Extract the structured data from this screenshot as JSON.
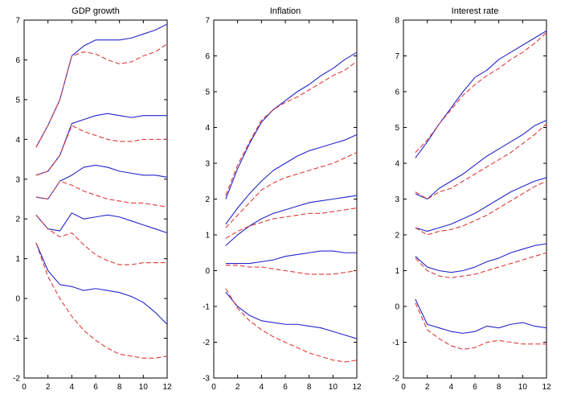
{
  "figure": {
    "background": "#ffffff"
  },
  "styles": {
    "axis": "#000000",
    "blue": "#2424cc",
    "red": "#e03a3a"
  },
  "chart_data": [
    {
      "type": "line",
      "title": "GDP growth",
      "xlabel": "",
      "ylabel": "",
      "x": [
        1,
        2,
        3,
        4,
        5,
        6,
        7,
        8,
        9,
        10,
        11,
        12
      ],
      "xlim": [
        0,
        12
      ],
      "ylim": [
        -2,
        7
      ],
      "xticks": [
        0,
        2,
        4,
        6,
        8,
        10,
        12
      ],
      "yticks": [
        -2,
        -1,
        0,
        1,
        2,
        3,
        4,
        5,
        6,
        7
      ],
      "grid": false,
      "legend": "none",
      "series": [
        {
          "name": "band1-blue-solid",
          "color": "#2424cc",
          "dash": false,
          "values": [
            3.8,
            4.35,
            5.0,
            6.1,
            6.35,
            6.5,
            6.5,
            6.5,
            6.55,
            6.65,
            6.75,
            6.9
          ]
        },
        {
          "name": "band1-red-dashed",
          "color": "#e03a3a",
          "dash": true,
          "values": [
            3.8,
            4.35,
            5.0,
            6.1,
            6.2,
            6.15,
            6.0,
            5.9,
            5.95,
            6.1,
            6.2,
            6.4
          ]
        },
        {
          "name": "band2-blue-solid",
          "color": "#2424cc",
          "dash": false,
          "values": [
            3.1,
            3.2,
            3.6,
            4.4,
            4.5,
            4.6,
            4.65,
            4.6,
            4.55,
            4.6,
            4.6,
            4.6
          ]
        },
        {
          "name": "band2-red-dashed",
          "color": "#e03a3a",
          "dash": true,
          "values": [
            3.1,
            3.2,
            3.6,
            4.35,
            4.2,
            4.1,
            4.0,
            3.95,
            3.95,
            4.0,
            4.0,
            4.0
          ]
        },
        {
          "name": "band3-blue-solid",
          "color": "#2424cc",
          "dash": false,
          "values": [
            2.55,
            2.5,
            2.95,
            3.1,
            3.3,
            3.35,
            3.3,
            3.2,
            3.15,
            3.1,
            3.1,
            3.05
          ]
        },
        {
          "name": "band3-red-dashed",
          "color": "#e03a3a",
          "dash": true,
          "values": [
            2.55,
            2.5,
            2.95,
            2.85,
            2.7,
            2.6,
            2.5,
            2.45,
            2.4,
            2.4,
            2.35,
            2.3
          ]
        },
        {
          "name": "band4-blue-solid",
          "color": "#2424cc",
          "dash": false,
          "values": [
            2.1,
            1.75,
            1.7,
            2.15,
            2.0,
            2.05,
            2.1,
            2.05,
            1.95,
            1.85,
            1.75,
            1.65
          ]
        },
        {
          "name": "band4-red-dashed",
          "color": "#e03a3a",
          "dash": true,
          "values": [
            2.1,
            1.75,
            1.55,
            1.65,
            1.35,
            1.1,
            0.95,
            0.85,
            0.85,
            0.9,
            0.9,
            0.9
          ]
        },
        {
          "name": "band5-blue-solid",
          "color": "#2424cc",
          "dash": false,
          "values": [
            1.4,
            0.7,
            0.35,
            0.3,
            0.2,
            0.25,
            0.2,
            0.15,
            0.05,
            -0.1,
            -0.35,
            -0.65
          ]
        },
        {
          "name": "band5-red-dashed",
          "color": "#e03a3a",
          "dash": true,
          "values": [
            1.4,
            0.55,
            0.0,
            -0.45,
            -0.8,
            -1.05,
            -1.25,
            -1.4,
            -1.45,
            -1.5,
            -1.5,
            -1.45
          ]
        }
      ]
    },
    {
      "type": "line",
      "title": "Inflation",
      "xlabel": "",
      "ylabel": "",
      "x": [
        1,
        2,
        3,
        4,
        5,
        6,
        7,
        8,
        9,
        10,
        11,
        12
      ],
      "xlim": [
        0,
        12
      ],
      "ylim": [
        -3,
        7
      ],
      "xticks": [
        0,
        2,
        4,
        6,
        8,
        10,
        12
      ],
      "yticks": [
        -3,
        -2,
        -1,
        0,
        1,
        2,
        3,
        4,
        5,
        6,
        7
      ],
      "grid": false,
      "legend": "none",
      "series": [
        {
          "name": "band1-blue-solid",
          "color": "#2424cc",
          "dash": false,
          "values": [
            2.0,
            2.85,
            3.55,
            4.15,
            4.5,
            4.75,
            5.0,
            5.2,
            5.45,
            5.65,
            5.9,
            6.1
          ]
        },
        {
          "name": "band1-red-dashed",
          "color": "#e03a3a",
          "dash": true,
          "values": [
            2.1,
            2.95,
            3.6,
            4.2,
            4.5,
            4.7,
            4.85,
            5.05,
            5.25,
            5.45,
            5.6,
            5.85
          ]
        },
        {
          "name": "band2-blue-solid",
          "color": "#2424cc",
          "dash": false,
          "values": [
            1.3,
            1.75,
            2.15,
            2.5,
            2.8,
            3.0,
            3.2,
            3.35,
            3.45,
            3.55,
            3.65,
            3.8
          ]
        },
        {
          "name": "band2-red-dashed",
          "color": "#e03a3a",
          "dash": true,
          "values": [
            1.2,
            1.55,
            1.9,
            2.25,
            2.45,
            2.6,
            2.7,
            2.8,
            2.9,
            3.0,
            3.15,
            3.3
          ]
        },
        {
          "name": "band3-blue-solid",
          "color": "#2424cc",
          "dash": false,
          "values": [
            0.7,
            1.0,
            1.25,
            1.45,
            1.6,
            1.7,
            1.8,
            1.9,
            1.95,
            2.0,
            2.05,
            2.1
          ]
        },
        {
          "name": "band3-red-dashed",
          "color": "#e03a3a",
          "dash": true,
          "values": [
            0.9,
            1.1,
            1.25,
            1.35,
            1.45,
            1.5,
            1.55,
            1.6,
            1.6,
            1.65,
            1.7,
            1.75
          ]
        },
        {
          "name": "band4-blue-solid",
          "color": "#2424cc",
          "dash": false,
          "values": [
            0.2,
            0.2,
            0.2,
            0.25,
            0.3,
            0.4,
            0.45,
            0.5,
            0.55,
            0.55,
            0.5,
            0.5
          ]
        },
        {
          "name": "band4-red-dashed",
          "color": "#e03a3a",
          "dash": true,
          "values": [
            0.15,
            0.15,
            0.1,
            0.1,
            0.05,
            0.0,
            -0.05,
            -0.1,
            -0.1,
            -0.1,
            -0.05,
            0.0
          ]
        },
        {
          "name": "band5-blue-solid",
          "color": "#2424cc",
          "dash": false,
          "values": [
            -0.6,
            -1.0,
            -1.25,
            -1.4,
            -1.45,
            -1.5,
            -1.5,
            -1.55,
            -1.6,
            -1.7,
            -1.8,
            -1.9
          ]
        },
        {
          "name": "band5-red-dashed",
          "color": "#e03a3a",
          "dash": true,
          "values": [
            -0.5,
            -1.05,
            -1.4,
            -1.65,
            -1.85,
            -2.0,
            -2.15,
            -2.3,
            -2.4,
            -2.5,
            -2.55,
            -2.5
          ]
        }
      ]
    },
    {
      "type": "line",
      "title": "Interest rate",
      "xlabel": "",
      "ylabel": "",
      "x": [
        1,
        2,
        3,
        4,
        5,
        6,
        7,
        8,
        9,
        10,
        11,
        12
      ],
      "xlim": [
        0,
        12
      ],
      "ylim": [
        -2,
        8
      ],
      "xticks": [
        0,
        2,
        4,
        6,
        8,
        10,
        12
      ],
      "yticks": [
        -2,
        -1,
        0,
        1,
        2,
        3,
        4,
        5,
        6,
        7,
        8
      ],
      "grid": false,
      "legend": "none",
      "series": [
        {
          "name": "band1-blue-solid",
          "color": "#2424cc",
          "dash": false,
          "values": [
            4.15,
            4.6,
            5.1,
            5.55,
            6.0,
            6.4,
            6.6,
            6.9,
            7.1,
            7.3,
            7.5,
            7.7
          ]
        },
        {
          "name": "band1-red-dashed",
          "color": "#e03a3a",
          "dash": true,
          "values": [
            4.3,
            4.65,
            5.1,
            5.5,
            5.9,
            6.2,
            6.45,
            6.65,
            6.9,
            7.1,
            7.35,
            7.65
          ]
        },
        {
          "name": "band2-blue-solid",
          "color": "#2424cc",
          "dash": false,
          "values": [
            3.15,
            3.0,
            3.3,
            3.5,
            3.7,
            3.95,
            4.2,
            4.4,
            4.6,
            4.8,
            5.05,
            5.2
          ]
        },
        {
          "name": "band2-red-dashed",
          "color": "#e03a3a",
          "dash": true,
          "values": [
            3.2,
            3.0,
            3.2,
            3.3,
            3.5,
            3.7,
            3.9,
            4.1,
            4.3,
            4.55,
            4.8,
            5.1
          ]
        },
        {
          "name": "band3-blue-solid",
          "color": "#2424cc",
          "dash": false,
          "values": [
            2.2,
            2.1,
            2.2,
            2.3,
            2.45,
            2.6,
            2.8,
            3.0,
            3.2,
            3.35,
            3.5,
            3.6
          ]
        },
        {
          "name": "band3-red-dashed",
          "color": "#e03a3a",
          "dash": true,
          "values": [
            2.2,
            2.0,
            2.1,
            2.15,
            2.25,
            2.4,
            2.55,
            2.75,
            2.95,
            3.15,
            3.35,
            3.5
          ]
        },
        {
          "name": "band4-blue-solid",
          "color": "#2424cc",
          "dash": false,
          "values": [
            1.4,
            1.1,
            1.0,
            0.95,
            1.0,
            1.1,
            1.25,
            1.35,
            1.5,
            1.6,
            1.7,
            1.75
          ]
        },
        {
          "name": "band4-red-dashed",
          "color": "#e03a3a",
          "dash": true,
          "values": [
            1.35,
            1.0,
            0.85,
            0.8,
            0.85,
            0.9,
            1.0,
            1.1,
            1.2,
            1.3,
            1.4,
            1.5
          ]
        },
        {
          "name": "band5-blue-solid",
          "color": "#2424cc",
          "dash": false,
          "values": [
            0.2,
            -0.5,
            -0.6,
            -0.7,
            -0.75,
            -0.7,
            -0.55,
            -0.6,
            -0.5,
            -0.45,
            -0.55,
            -0.6
          ]
        },
        {
          "name": "band5-red-dashed",
          "color": "#e03a3a",
          "dash": true,
          "values": [
            0.1,
            -0.65,
            -0.9,
            -1.1,
            -1.2,
            -1.15,
            -1.0,
            -0.95,
            -1.0,
            -1.05,
            -1.05,
            -1.05
          ]
        }
      ]
    }
  ]
}
